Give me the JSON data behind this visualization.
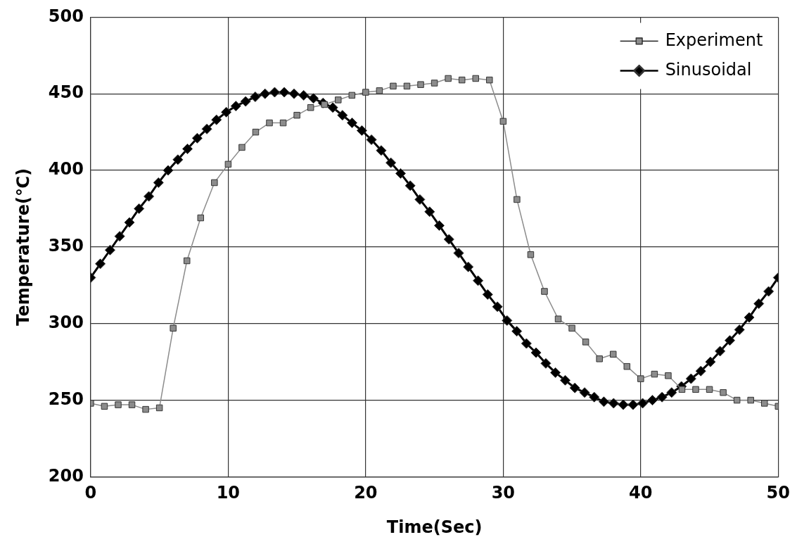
{
  "chart_data": {
    "type": "line",
    "xlabel": "Time(Sec)",
    "ylabel": "Temperature(℃)",
    "xlim": [
      0,
      50
    ],
    "xticks": [
      0,
      10,
      20,
      30,
      40,
      50
    ],
    "ylim": [
      200,
      500
    ],
    "yticks": [
      200,
      250,
      300,
      350,
      400,
      450,
      500
    ],
    "grid": true,
    "legend": "top right",
    "series": [
      {
        "name": "Experiment",
        "color": "#8c8c8c",
        "marker": "square",
        "x": [
          0,
          1,
          2,
          3,
          4,
          5,
          6,
          7,
          8,
          9,
          10,
          11,
          12,
          13,
          14,
          15,
          16,
          17,
          18,
          19,
          20,
          21,
          22,
          23,
          24,
          25,
          26,
          27,
          28,
          29,
          30,
          31,
          32,
          33,
          34,
          35,
          36,
          37,
          38,
          39,
          40,
          41,
          42,
          43,
          44,
          45,
          46,
          47,
          48,
          49,
          50
        ],
        "values": [
          248,
          246,
          247,
          247,
          244,
          245,
          297,
          341,
          369,
          392,
          404,
          415,
          425,
          431,
          431,
          436,
          441,
          443,
          446,
          449,
          451,
          452,
          455,
          455,
          456,
          457,
          460,
          459,
          460,
          459,
          432,
          381,
          345,
          321,
          303,
          297,
          288,
          277,
          280,
          272,
          264,
          267,
          266,
          257,
          257,
          257,
          255,
          250,
          250,
          248,
          246
        ]
      },
      {
        "name": "Sinusoidal",
        "color": "#000000",
        "marker": "diamond",
        "x": [
          0,
          0.7,
          1.41,
          2.11,
          2.82,
          3.52,
          4.23,
          4.93,
          5.63,
          6.34,
          7.04,
          7.75,
          8.45,
          9.15,
          9.86,
          10.56,
          11.27,
          11.97,
          12.68,
          13.38,
          14.08,
          14.79,
          15.49,
          16.2,
          16.9,
          17.61,
          18.31,
          19.01,
          19.72,
          20.42,
          21.13,
          21.83,
          22.54,
          23.24,
          23.94,
          24.65,
          25.35,
          26.06,
          26.76,
          27.46,
          28.17,
          28.87,
          29.58,
          30.28,
          30.99,
          31.69,
          32.39,
          33.1,
          33.8,
          34.51,
          35.21,
          35.92,
          36.62,
          37.32,
          38.03,
          38.73,
          39.44,
          40.14,
          40.85,
          41.55,
          42.25,
          42.96,
          43.66,
          44.37,
          45.07,
          45.77,
          46.48,
          47.18,
          47.89,
          48.59,
          49.3,
          50
        ],
        "values": [
          330,
          339,
          348,
          357,
          366,
          375,
          383,
          392,
          400,
          407,
          414,
          421,
          427,
          433,
          438,
          442,
          445,
          448,
          450,
          451,
          451,
          450,
          449,
          447,
          444,
          441,
          436,
          431,
          426,
          420,
          413,
          405,
          398,
          390,
          381,
          373,
          364,
          355,
          346,
          337,
          328,
          319,
          311,
          302,
          295,
          287,
          281,
          274,
          268,
          263,
          258,
          255,
          252,
          249,
          248,
          247,
          247,
          248,
          250,
          252,
          255,
          259,
          264,
          269,
          275,
          282,
          289,
          296,
          304,
          313,
          321,
          330
        ]
      }
    ]
  }
}
